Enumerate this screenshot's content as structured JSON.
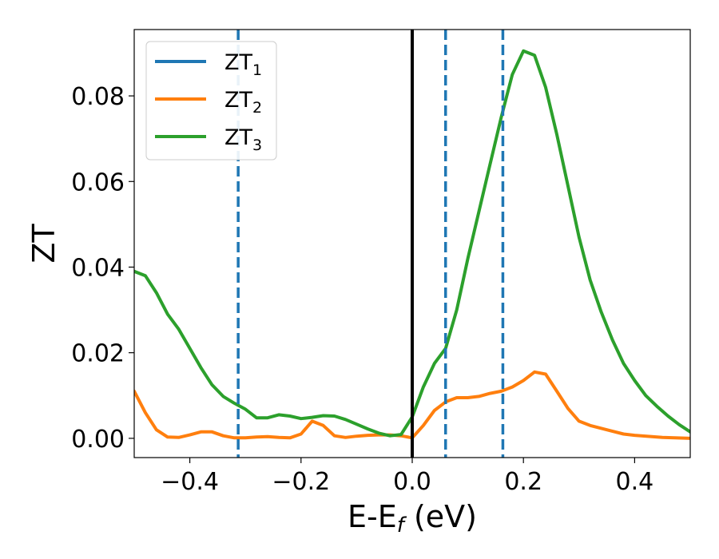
{
  "chart_data": {
    "type": "line",
    "xlabel_main": "E-E",
    "xlabel_sub": "f",
    "xlabel_unit": " (eV)",
    "ylabel": "ZT",
    "xlim": [
      -0.5,
      0.5
    ],
    "ylim": [
      -0.0045,
      0.0955
    ],
    "xticks": [
      -0.4,
      -0.2,
      0.0,
      0.2,
      0.4
    ],
    "xtick_labels": [
      "−0.4",
      "−0.2",
      "0.0",
      "0.2",
      "0.4"
    ],
    "yticks": [
      0.0,
      0.02,
      0.04,
      0.06,
      0.08
    ],
    "ytick_labels": [
      "0.00",
      "0.02",
      "0.04",
      "0.06",
      "0.08"
    ],
    "legend_position": "top-left",
    "series": [
      {
        "name": "ZT",
        "name_sub": "1",
        "color": "#1f77b4",
        "x": [],
        "y": []
      },
      {
        "name": "ZT",
        "name_sub": "2",
        "color": "#ff7f0e",
        "x": [
          -0.5,
          -0.48,
          -0.46,
          -0.44,
          -0.42,
          -0.4,
          -0.38,
          -0.36,
          -0.34,
          -0.32,
          -0.3,
          -0.28,
          -0.26,
          -0.24,
          -0.22,
          -0.2,
          -0.18,
          -0.16,
          -0.14,
          -0.12,
          -0.1,
          -0.08,
          -0.06,
          -0.04,
          -0.02,
          0.0,
          0.02,
          0.04,
          0.06,
          0.08,
          0.1,
          0.12,
          0.14,
          0.16,
          0.18,
          0.2,
          0.22,
          0.24,
          0.26,
          0.28,
          0.3,
          0.32,
          0.35,
          0.38,
          0.4,
          0.45,
          0.5
        ],
        "y": [
          0.011,
          0.006,
          0.002,
          0.0003,
          0.0002,
          0.0008,
          0.0015,
          0.0015,
          0.0006,
          0.0001,
          0.0001,
          0.0003,
          0.0004,
          0.0002,
          0.0001,
          0.001,
          0.004,
          0.003,
          0.0006,
          0.0002,
          0.0005,
          0.0007,
          0.0008,
          0.0008,
          0.0006,
          0.0001,
          0.003,
          0.0065,
          0.0085,
          0.0095,
          0.0095,
          0.0098,
          0.0105,
          0.011,
          0.012,
          0.0135,
          0.0155,
          0.015,
          0.011,
          0.007,
          0.004,
          0.003,
          0.002,
          0.001,
          0.0007,
          0.0002,
          0.0
        ]
      },
      {
        "name": "ZT",
        "name_sub": "3",
        "color": "#2ca02c",
        "x": [
          -0.5,
          -0.48,
          -0.46,
          -0.44,
          -0.42,
          -0.4,
          -0.38,
          -0.36,
          -0.34,
          -0.32,
          -0.3,
          -0.28,
          -0.26,
          -0.24,
          -0.22,
          -0.2,
          -0.18,
          -0.16,
          -0.14,
          -0.12,
          -0.1,
          -0.08,
          -0.06,
          -0.04,
          -0.02,
          0.0,
          0.02,
          0.04,
          0.06,
          0.08,
          0.1,
          0.12,
          0.14,
          0.16,
          0.18,
          0.2,
          0.22,
          0.24,
          0.26,
          0.28,
          0.3,
          0.32,
          0.34,
          0.36,
          0.38,
          0.4,
          0.42,
          0.44,
          0.46,
          0.48,
          0.5
        ],
        "y": [
          0.039,
          0.038,
          0.034,
          0.029,
          0.0255,
          0.021,
          0.0165,
          0.0125,
          0.0098,
          0.0082,
          0.0068,
          0.0048,
          0.0048,
          0.0055,
          0.0052,
          0.0046,
          0.0049,
          0.0053,
          0.0052,
          0.0044,
          0.0033,
          0.0022,
          0.0012,
          0.0006,
          0.0009,
          0.005,
          0.012,
          0.0175,
          0.021,
          0.03,
          0.042,
          0.053,
          0.064,
          0.075,
          0.085,
          0.0905,
          0.0895,
          0.082,
          0.071,
          0.059,
          0.047,
          0.037,
          0.0295,
          0.023,
          0.0175,
          0.0135,
          0.01,
          0.0075,
          0.0052,
          0.0032,
          0.0015
        ]
      }
    ],
    "vlines": [
      {
        "x": 0.0,
        "style": "solid",
        "color": "#000000"
      },
      {
        "x": -0.313,
        "style": "dashed",
        "color": "#1f77b4"
      },
      {
        "x": 0.06,
        "style": "dashed",
        "color": "#1f77b4"
      },
      {
        "x": 0.163,
        "style": "dashed",
        "color": "#1f77b4"
      }
    ]
  }
}
